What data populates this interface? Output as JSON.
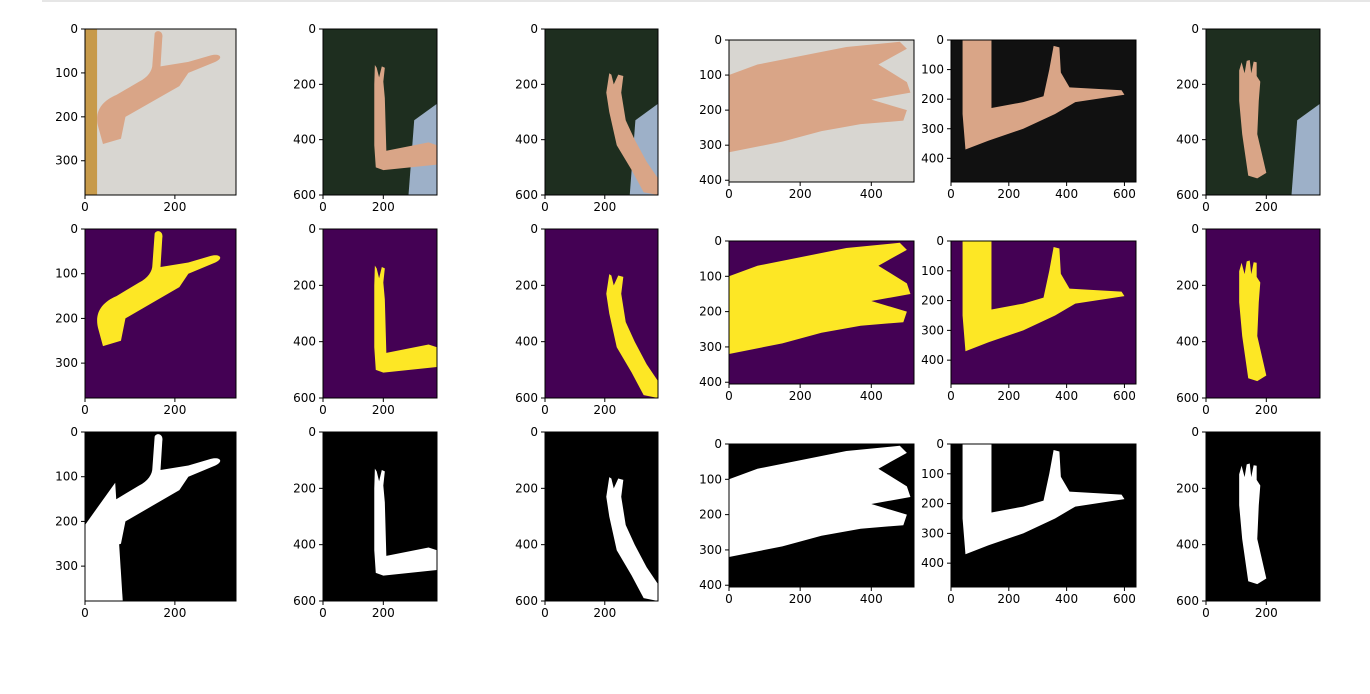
{
  "colors": {
    "mask_bg": "#440154",
    "mask_fg": "#fde725",
    "bin_bg": "#000000",
    "bin_fg": "#ffffff",
    "photo_green": "#1e2e1f",
    "photo_gray": "#d8d6d1",
    "photo_black": "#111111",
    "skin": "#d9a587"
  },
  "chart_data": {
    "type": "image_grid",
    "rows": [
      "photo",
      "segmentation-mask",
      "binary-mask"
    ],
    "columns": [
      {
        "img_w": 336,
        "img_h": 378,
        "photo": "gray-shirt",
        "xticks": [
          0,
          200
        ],
        "yticks": [
          0,
          100,
          200,
          300
        ]
      },
      {
        "img_w": 378,
        "img_h": 600,
        "photo": "dark-green",
        "xticks": [
          0,
          200
        ],
        "yticks": [
          0,
          200,
          400,
          600
        ]
      },
      {
        "img_w": 378,
        "img_h": 600,
        "photo": "dark-green",
        "xticks": [
          0,
          200
        ],
        "yticks": [
          0,
          200,
          400,
          600
        ]
      },
      {
        "img_w": 520,
        "img_h": 405,
        "photo": "gray-closeup",
        "xticks": [
          0,
          200,
          400
        ],
        "yticks": [
          0,
          100,
          200,
          300,
          400
        ]
      },
      {
        "img_w": 640,
        "img_h": 480,
        "photo": "black-shirt",
        "xticks": [
          0,
          200,
          400,
          600
        ],
        "yticks": [
          0,
          100,
          200,
          300,
          400
        ]
      },
      {
        "img_w": 378,
        "img_h": 600,
        "photo": "dark-green",
        "xticks": [
          0,
          200
        ],
        "yticks": [
          0,
          200,
          400,
          600
        ]
      }
    ]
  }
}
